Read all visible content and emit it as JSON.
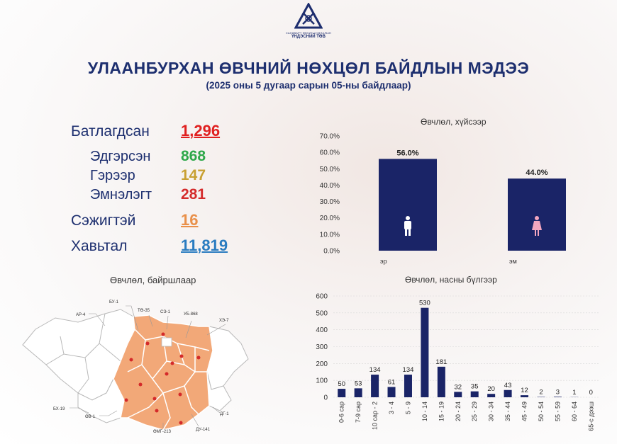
{
  "logo": {
    "line1": "ХАЛДВАРТ ӨВЧИН СУДЛАЛЫН",
    "line2": "ҮНДЭСНИЙ ТӨВ"
  },
  "header": {
    "title": "УЛААНБУРХАН ӨВЧНИЙ НӨХЦӨЛ БАЙДЛЫН МЭДЭЭ",
    "subtitle": "(2025 оны 5 дугаар сарын 05-ны байдлаар)"
  },
  "stats": {
    "confirmed": {
      "label": "Батлагдсан",
      "value": "1,296",
      "color": "#e02020"
    },
    "recovered": {
      "label": "Эдгэрсэн",
      "value": "868",
      "color": "#2ea84a"
    },
    "home": {
      "label": "Гэрээр",
      "value": "147",
      "color": "#c8a032"
    },
    "hospital": {
      "label": "Эмнэлэгт",
      "value": "281",
      "color": "#d42a2a"
    },
    "suspected": {
      "label": "Сэжигтэй",
      "value": "16",
      "color": "#e9904a"
    },
    "contact": {
      "label": "Хавьтал",
      "value": "11,819",
      "color": "#2a7cc0"
    }
  },
  "colors": {
    "navy": "#1a2467",
    "map_fill": "#f2a878",
    "map_gray": "#ffffff",
    "dot": "#d42a2a"
  },
  "map": {
    "title": "Өвчлөл, байршлаар",
    "labels": [
      "БУ-1",
      "ТӨ-35",
      "СЭ-1",
      "УБ-868",
      "ХЭ-7",
      "АР-4",
      "БХ-19",
      "ӨВ-1",
      "ӨМГ-213",
      "ДУ-141",
      "ДГ-1"
    ]
  },
  "chart_data": [
    {
      "type": "bar",
      "title": "Өвчлөл, хүйсээр",
      "categories": [
        "эр",
        "эм"
      ],
      "values": [
        56.0,
        44.0
      ],
      "value_labels": [
        "56.0%",
        "44.0%"
      ],
      "ylim": [
        0,
        70
      ],
      "yticks": [
        "0.0%",
        "10.0%",
        "20.0%",
        "30.0%",
        "40.0%",
        "50.0%",
        "60.0%",
        "70.0%"
      ],
      "icons": [
        "male-icon",
        "female-icon"
      ]
    },
    {
      "type": "bar",
      "title": "Өвчлөл, насны бүлгээр",
      "categories": [
        "0-6 сар",
        "7-9 сар",
        "10 сар - 2",
        "3 - 4",
        "5 - 9",
        "10 - 14",
        "15 - 19",
        "20 - 24",
        "25 - 29",
        "30 - 34",
        "35 - 44",
        "45 - 49",
        "50 - 54",
        "55 - 59",
        "60 - 64",
        "65-с дээш"
      ],
      "values": [
        50,
        53,
        134,
        61,
        134,
        530,
        181,
        32,
        35,
        20,
        43,
        12,
        2,
        3,
        1,
        0
      ],
      "ylim": [
        0,
        600
      ],
      "yticks": [
        "0",
        "100",
        "200",
        "300",
        "400",
        "500",
        "600"
      ]
    }
  ]
}
